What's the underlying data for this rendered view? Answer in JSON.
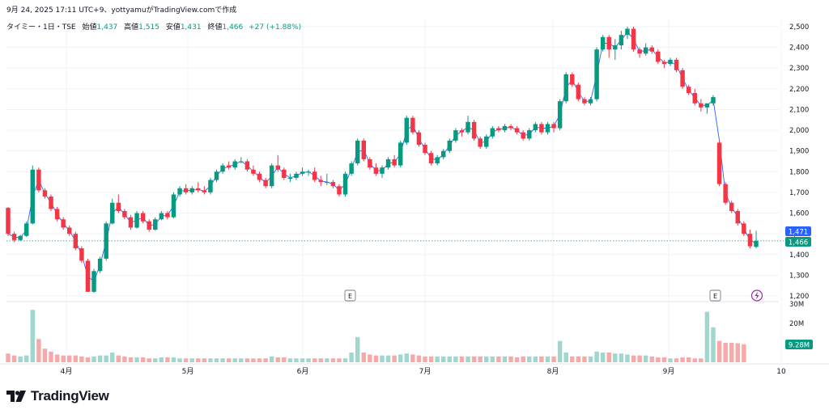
{
  "header": {
    "caption": "9月 24, 2025 17:11 UTC+9、yottyamuがTradingView.comで作成"
  },
  "legend": {
    "symbol": "タイミー・1日・TSE",
    "open_label": "始値",
    "open": "1,437",
    "high_label": "高値",
    "high": "1,515",
    "low_label": "安値",
    "low": "1,431",
    "close_label": "終値",
    "close": "1,466",
    "change": "+27 (+1.88%)"
  },
  "badges": {
    "price_blue": "1,471",
    "price_green": "1,466",
    "volume": "9.28M",
    "earnings_1": "E",
    "earnings_2": "E"
  },
  "brand": {
    "name": "TradingView"
  },
  "colors": {
    "up": "#089981",
    "down": "#f23645",
    "up_vol": "#9fd7cf",
    "down_vol": "#f7a9a9",
    "ma_line": "#2962ff",
    "blue_badge": "#2962ff",
    "lightning": "#9c27b0"
  },
  "chart_data": [
    {
      "type": "candlestick",
      "ylim": [
        1200,
        2500
      ],
      "y_ticks": [
        "1,200",
        "1,300",
        "1,400",
        "1,500",
        "1,600",
        "1,700",
        "1,800",
        "1,900",
        "2,000",
        "2,100",
        "2,200",
        "2,300",
        "2,400",
        "2,500"
      ],
      "x_labels": [
        "4月",
        "5月",
        "6月",
        "7月",
        "8月",
        "9月",
        "10"
      ],
      "grid": true,
      "series": [
        {
          "ohlc": [
            [
              1625,
              1630,
              1490,
              1500
            ],
            [
              1500,
              1510,
              1460,
              1470
            ],
            [
              1470,
              1495,
              1465,
              1490
            ],
            [
              1490,
              1560,
              1485,
              1550
            ],
            [
              1550,
              1830,
              1545,
              1810
            ],
            [
              1810,
              1820,
              1700,
              1710
            ],
            [
              1710,
              1720,
              1670,
              1680
            ],
            [
              1680,
              1690,
              1610,
              1620
            ],
            [
              1620,
              1630,
              1560,
              1570
            ],
            [
              1570,
              1580,
              1520,
              1530
            ],
            [
              1530,
              1540,
              1490,
              1500
            ],
            [
              1500,
              1510,
              1420,
              1430
            ],
            [
              1430,
              1440,
              1360,
              1370
            ],
            [
              1370,
              1380,
              1220,
              1220
            ],
            [
              1220,
              1330,
              1215,
              1320
            ],
            [
              1320,
              1390,
              1310,
              1380
            ],
            [
              1380,
              1560,
              1370,
              1550
            ],
            [
              1550,
              1670,
              1545,
              1650
            ],
            [
              1650,
              1690,
              1600,
              1610
            ],
            [
              1610,
              1620,
              1570,
              1580
            ],
            [
              1580,
              1590,
              1520,
              1530
            ],
            [
              1530,
              1610,
              1525,
              1600
            ],
            [
              1600,
              1610,
              1550,
              1560
            ],
            [
              1560,
              1570,
              1510,
              1520
            ],
            [
              1520,
              1580,
              1515,
              1570
            ],
            [
              1570,
              1610,
              1565,
              1600
            ],
            [
              1600,
              1610,
              1570,
              1580
            ],
            [
              1580,
              1700,
              1575,
              1690
            ],
            [
              1690,
              1730,
              1680,
              1720
            ],
            [
              1720,
              1740,
              1690,
              1700
            ],
            [
              1700,
              1730,
              1690,
              1720
            ],
            [
              1720,
              1750,
              1700,
              1710
            ],
            [
              1710,
              1730,
              1690,
              1700
            ],
            [
              1700,
              1770,
              1690,
              1760
            ],
            [
              1760,
              1810,
              1750,
              1800
            ],
            [
              1800,
              1840,
              1790,
              1830
            ],
            [
              1830,
              1850,
              1810,
              1820
            ],
            [
              1820,
              1860,
              1810,
              1850
            ],
            [
              1850,
              1870,
              1840,
              1850
            ],
            [
              1850,
              1860,
              1800,
              1810
            ],
            [
              1810,
              1830,
              1780,
              1790
            ],
            [
              1790,
              1800,
              1750,
              1760
            ],
            [
              1760,
              1770,
              1720,
              1730
            ],
            [
              1730,
              1840,
              1720,
              1830
            ],
            [
              1830,
              1880,
              1800,
              1810
            ],
            [
              1810,
              1820,
              1760,
              1770
            ],
            [
              1770,
              1790,
              1750,
              1770
            ],
            [
              1770,
              1800,
              1760,
              1790
            ],
            [
              1790,
              1820,
              1780,
              1800
            ],
            [
              1800,
              1810,
              1780,
              1800
            ],
            [
              1800,
              1820,
              1750,
              1760
            ],
            [
              1760,
              1780,
              1730,
              1750
            ],
            [
              1750,
              1790,
              1735,
              1750
            ],
            [
              1750,
              1760,
              1720,
              1730
            ],
            [
              1730,
              1740,
              1680,
              1690
            ],
            [
              1690,
              1800,
              1680,
              1790
            ],
            [
              1790,
              1850,
              1780,
              1840
            ],
            [
              1840,
              1960,
              1830,
              1950
            ],
            [
              1950,
              1960,
              1850,
              1860
            ],
            [
              1860,
              1870,
              1810,
              1820
            ],
            [
              1820,
              1840,
              1780,
              1790
            ],
            [
              1790,
              1830,
              1770,
              1820
            ],
            [
              1820,
              1870,
              1810,
              1860
            ],
            [
              1860,
              1880,
              1820,
              1830
            ],
            [
              1830,
              1950,
              1820,
              1940
            ],
            [
              1940,
              2070,
              1930,
              2060
            ],
            [
              2060,
              2070,
              1980,
              1990
            ],
            [
              1990,
              2000,
              1920,
              1930
            ],
            [
              1930,
              1940,
              1880,
              1890
            ],
            [
              1890,
              1900,
              1830,
              1840
            ],
            [
              1840,
              1880,
              1830,
              1870
            ],
            [
              1870,
              1910,
              1860,
              1900
            ],
            [
              1900,
              1960,
              1890,
              1950
            ],
            [
              1950,
              2010,
              1940,
              2000
            ],
            [
              2000,
              2010,
              1970,
              1990
            ],
            [
              1990,
              2070,
              1980,
              2040
            ],
            [
              2040,
              2050,
              1950,
              1960
            ],
            [
              1960,
              1970,
              1910,
              1920
            ],
            [
              1920,
              1980,
              1910,
              1970
            ],
            [
              1970,
              2020,
              1960,
              2010
            ],
            [
              2010,
              2020,
              1990,
              2000
            ],
            [
              2000,
              2030,
              1990,
              2020
            ],
            [
              2020,
              2030,
              2000,
              2010
            ],
            [
              2010,
              2020,
              1980,
              1990
            ],
            [
              1990,
              2000,
              1950,
              1960
            ],
            [
              1960,
              2010,
              1950,
              2000
            ],
            [
              2000,
              2040,
              1990,
              2030
            ],
            [
              2030,
              2040,
              1980,
              1990
            ],
            [
              1990,
              2040,
              1980,
              2030
            ],
            [
              2030,
              2040,
              1990,
              2010
            ],
            [
              2010,
              2150,
              2000,
              2140
            ],
            [
              2140,
              2280,
              2130,
              2270
            ],
            [
              2270,
              2280,
              2210,
              2220
            ],
            [
              2220,
              2230,
              2140,
              2150
            ],
            [
              2150,
              2160,
              2120,
              2130
            ],
            [
              2130,
              2160,
              2120,
              2150
            ],
            [
              2150,
              2400,
              2140,
              2390
            ],
            [
              2390,
              2460,
              2380,
              2450
            ],
            [
              2450,
              2460,
              2350,
              2390
            ],
            [
              2390,
              2440,
              2340,
              2410
            ],
            [
              2410,
              2480,
              2390,
              2460
            ],
            [
              2460,
              2500,
              2440,
              2490
            ],
            [
              2490,
              2500,
              2380,
              2390
            ],
            [
              2390,
              2400,
              2350,
              2370
            ],
            [
              2370,
              2420,
              2360,
              2400
            ],
            [
              2400,
              2410,
              2370,
              2380
            ],
            [
              2380,
              2390,
              2320,
              2330
            ],
            [
              2330,
              2340,
              2300,
              2320
            ],
            [
              2320,
              2350,
              2310,
              2340
            ],
            [
              2340,
              2350,
              2280,
              2290
            ],
            [
              2290,
              2300,
              2200,
              2210
            ],
            [
              2210,
              2220,
              2170,
              2180
            ],
            [
              2180,
              2200,
              2120,
              2130
            ],
            [
              2130,
              2150,
              2090,
              2110
            ],
            [
              2110,
              2120,
              2080,
              2130
            ],
            [
              2130,
              2170,
              2120,
              2160
            ],
            [
              1940,
              1950,
              1730,
              1740
            ],
            [
              1740,
              1750,
              1640,
              1650
            ],
            [
              1650,
              1660,
              1600,
              1610
            ],
            [
              1610,
              1620,
              1540,
              1550
            ],
            [
              1550,
              1560,
              1490,
              1500
            ],
            [
              1500,
              1520,
              1430,
              1440
            ],
            [
              1437,
              1515,
              1431,
              1466
            ]
          ]
        },
        {
          "name": "volume",
          "ylim": [
            0,
            30
          ],
          "y_ticks": [
            "20M",
            "30M"
          ],
          "values": [
            4.5,
            3.5,
            3.0,
            3.5,
            27,
            12,
            7,
            5.5,
            4,
            3.5,
            3.5,
            3.5,
            3,
            2.5,
            3,
            3.5,
            3.5,
            5,
            3.5,
            3,
            2.5,
            2.5,
            2.5,
            2,
            2,
            2.5,
            2.5,
            2.5,
            2,
            2,
            2,
            2,
            2,
            2,
            2,
            2,
            2,
            2,
            2,
            2,
            2,
            2,
            2,
            3,
            2.5,
            2.5,
            2,
            2,
            2,
            2,
            2,
            2,
            2,
            2,
            2,
            2,
            5,
            13,
            5,
            4,
            3.5,
            3.5,
            3.5,
            3.5,
            4,
            4.5,
            4,
            3.5,
            3,
            3,
            3,
            3,
            3,
            3,
            3,
            3,
            3,
            3,
            3,
            3,
            3,
            3,
            3,
            2.5,
            3,
            3,
            3,
            3,
            3,
            3,
            11,
            5,
            3,
            3,
            3,
            3,
            5.5,
            5,
            5,
            4.5,
            4.5,
            4,
            3.5,
            3.5,
            3.5,
            3,
            2.5,
            2.5,
            2,
            2,
            2.5,
            2.5,
            2,
            2,
            26,
            18,
            11,
            10,
            10,
            9.8,
            9.28
          ]
        }
      ]
    }
  ]
}
